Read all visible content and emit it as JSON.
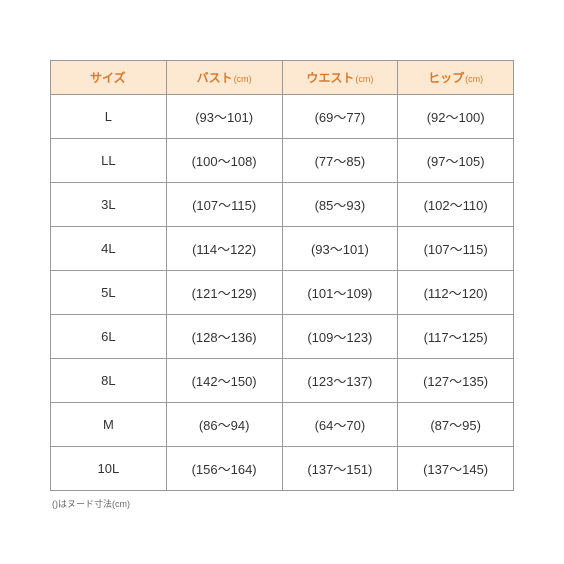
{
  "table": {
    "type": "table",
    "header_bg_color": "#fde9d2",
    "header_text_color": "#d97a2a",
    "border_color": "#999999",
    "cell_text_color": "#333333",
    "background_color": "#ffffff",
    "header_fontsize": 12,
    "cell_fontsize": 13,
    "unit_fontsize": 9,
    "columns": [
      {
        "label": "サイズ",
        "unit": ""
      },
      {
        "label": "バスト",
        "unit": "(cm)"
      },
      {
        "label": "ウエスト",
        "unit": "(cm)"
      },
      {
        "label": "ヒップ",
        "unit": "(cm)"
      }
    ],
    "rows": [
      [
        "L",
        "(93～101)",
        "(69～77)",
        "(92～100)"
      ],
      [
        "LL",
        "(100～108)",
        "(77～85)",
        "(97～105)"
      ],
      [
        "3L",
        "(107～115)",
        "(85～93)",
        "(102～110)"
      ],
      [
        "4L",
        "(114～122)",
        "(93～101)",
        "(107～115)"
      ],
      [
        "5L",
        "(121～129)",
        "(101～109)",
        "(112～120)"
      ],
      [
        "6L",
        "(128～136)",
        "(109～123)",
        "(117～125)"
      ],
      [
        "8L",
        "(142～150)",
        "(123～137)",
        "(127～135)"
      ],
      [
        "M",
        "(86～94)",
        "(64～70)",
        "(87～95)"
      ],
      [
        "10L",
        "(156～164)",
        "(137～151)",
        "(137～145)"
      ]
    ]
  },
  "footnote": "()はヌード寸法(cm)"
}
